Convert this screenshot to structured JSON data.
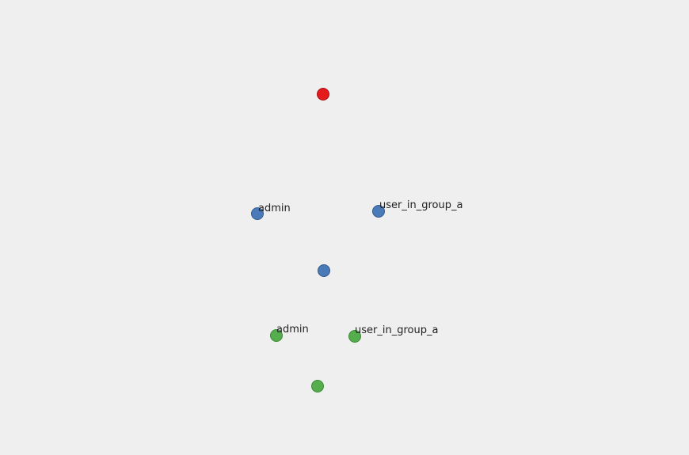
{
  "graph": {
    "background": "#efefef",
    "nodes": [
      {
        "id": "root",
        "label": "",
        "color": "#e41a1c",
        "stroke": "#a51214"
      },
      {
        "id": "blue-admin",
        "label": "admin",
        "color": "#4a7ab8",
        "stroke": "#345a8c"
      },
      {
        "id": "blue-user",
        "label": "user_in_group_a",
        "color": "#4a7ab8",
        "stroke": "#345a8c"
      },
      {
        "id": "blue-center",
        "label": "",
        "color": "#4a7ab8",
        "stroke": "#345a8c"
      },
      {
        "id": "green-admin",
        "label": "admin",
        "color": "#55ad4d",
        "stroke": "#3c8a35"
      },
      {
        "id": "green-user",
        "label": "user_in_group_a",
        "color": "#55ad4d",
        "stroke": "#3c8a35"
      },
      {
        "id": "green-center",
        "label": "",
        "color": "#55ad4d",
        "stroke": "#3c8a35"
      }
    ]
  }
}
